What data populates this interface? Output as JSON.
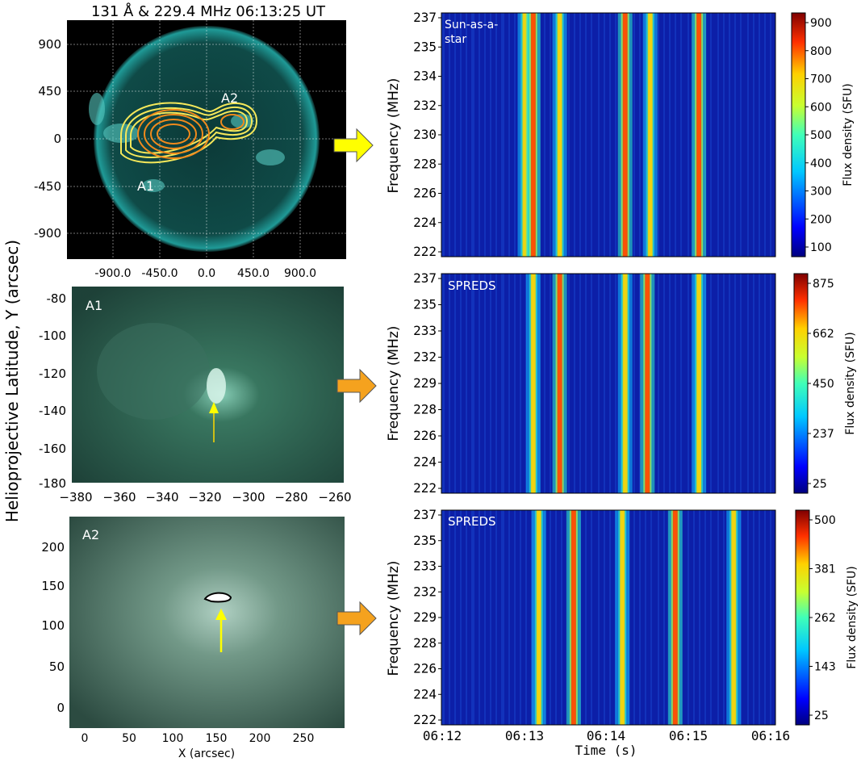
{
  "figure_title": "131 Å & 229.4 MHz  06:13:25 UT",
  "shared_y_label": "Helioprojective Latitude, Y (arcsec)",
  "colors": {
    "sdo_teal": "#1f9a97",
    "contour_orange": "#f08a1c",
    "contour_yellow": "#f5e85a",
    "arrow_yellow": "#ffff00",
    "arrow_orange": "#f5a21e",
    "bg_blue": "#1020a0"
  },
  "panels_left": [
    {
      "id": "full_disk",
      "labels": [
        "A2",
        "A1"
      ],
      "x_ticks": [
        "-900.0",
        "-450.0",
        "0.0",
        "450.0",
        "900.0"
      ],
      "y_ticks": [
        "900",
        "450",
        "0",
        "-450",
        "-900"
      ]
    },
    {
      "id": "A1",
      "label": "A1",
      "x_ticks": [
        "−380",
        "−360",
        "−340",
        "−320",
        "−300",
        "−280",
        "−260"
      ],
      "y_ticks": [
        "-80",
        "-100",
        "-120",
        "-140",
        "-160",
        "-180"
      ]
    },
    {
      "id": "A2",
      "label": "A2",
      "x_label": "X (arcsec)",
      "x_ticks": [
        "0",
        "50",
        "100",
        "150",
        "200",
        "250"
      ],
      "y_ticks": [
        "200",
        "150",
        "100",
        "50",
        "0"
      ]
    }
  ],
  "spectrograms": [
    {
      "label": "Sun-as-a-star",
      "colorbar_label": "Flux density (SFU)",
      "colorbar_ticks": [
        "900",
        "800",
        "700",
        "600",
        "500",
        "400",
        "300",
        "200",
        "100"
      ],
      "y_ticks": [
        "237",
        "235",
        "234",
        "232",
        "230",
        "228",
        "226",
        "224",
        "222"
      ]
    },
    {
      "label": "SPREDS",
      "colorbar_label": "Flux density (SFU)",
      "colorbar_ticks": [
        "875",
        "662",
        "450",
        "237",
        "25"
      ],
      "y_ticks": [
        "237",
        "235",
        "233",
        "232",
        "229",
        "228",
        "226",
        "224",
        "222"
      ]
    },
    {
      "label": "SPREDS",
      "colorbar_label": "Flux density (SFU)",
      "colorbar_ticks": [
        "500",
        "381",
        "262",
        "143",
        "25"
      ],
      "y_ticks": [
        "237",
        "235",
        "233",
        "232",
        "229",
        "228",
        "226",
        "224",
        "222"
      ],
      "x_ticks": [
        "06:12",
        "06:13",
        "06:14",
        "06:15",
        "06:16"
      ],
      "x_label": "Time (s)"
    }
  ],
  "y_label_freq": "Frequency (MHz)",
  "chart_data": [
    {
      "type": "heatmap",
      "label": "Sun-as-a-star",
      "xlabel": "",
      "ylabel": "Frequency (MHz)",
      "ylim": [
        222,
        237
      ],
      "colorbar_range": [
        25,
        950
      ],
      "bright_bursts_time": [
        "06:13:00",
        "06:13:06",
        "06:13:25",
        "06:14:12",
        "06:14:30",
        "06:15:05"
      ]
    },
    {
      "type": "heatmap",
      "label": "SPREDS",
      "xlabel": "",
      "ylabel": "Frequency (MHz)",
      "ylim": [
        222,
        237
      ],
      "colorbar_range": [
        25,
        950
      ],
      "bright_bursts_time": [
        "06:13:06",
        "06:13:25",
        "06:14:12",
        "06:14:28",
        "06:15:05"
      ]
    },
    {
      "type": "heatmap",
      "label": "SPREDS",
      "xlabel": "Time (s)",
      "ylabel": "Frequency (MHz)",
      "ylim": [
        222,
        237
      ],
      "xlim": [
        "06:12",
        "06:16"
      ],
      "colorbar_range": [
        25,
        520
      ],
      "bright_bursts_time": [
        "06:13:10",
        "06:13:35",
        "06:14:10",
        "06:14:48",
        "06:15:30"
      ]
    }
  ]
}
